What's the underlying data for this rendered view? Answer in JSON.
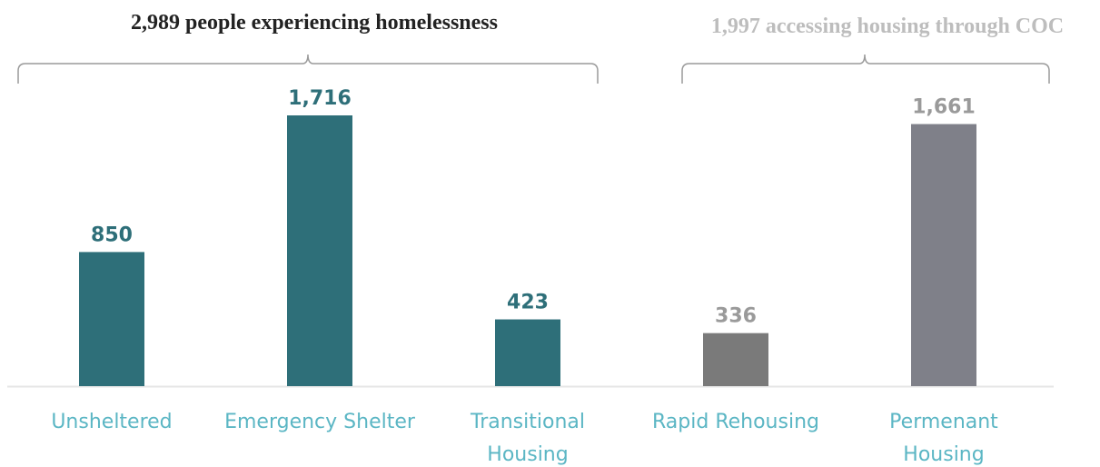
{
  "chart_data": {
    "type": "bar",
    "categories": [
      "Unsheltered",
      "Emergency Shelter",
      "Transitional Housing",
      "Rapid Rehousing",
      "Permenant Housing"
    ],
    "category_lines": [
      [
        "Unsheltered"
      ],
      [
        "Emergency Shelter"
      ],
      [
        "Transitional",
        "Housing"
      ],
      [
        "Rapid Rehousing"
      ],
      [
        "Permenant",
        "Housing"
      ]
    ],
    "values": [
      850,
      1716,
      423,
      336,
      1661
    ],
    "data_labels": [
      "850",
      "1,716",
      "423",
      "336",
      "1,661"
    ],
    "ylim": [
      0,
      1716
    ],
    "grid": false,
    "legend": "none",
    "groups": [
      {
        "label": "2,989 people experiencing homelessness",
        "categories": [
          0,
          1,
          2
        ],
        "color": "#222222"
      },
      {
        "label": "1,997 accessing housing through COC",
        "categories": [
          3,
          4
        ],
        "color": "#bdbdbd"
      }
    ],
    "bar_colors": [
      "#2e6f79",
      "#2e6f79",
      "#2e6f79",
      "#7a7a7a",
      "#7f8089"
    ],
    "value_label_colors": [
      "#2e6f79",
      "#2e6f79",
      "#2e6f79",
      "#9a9a9a",
      "#9a9a9a"
    ],
    "category_label_color": "#5bb6c4",
    "bracket_color": "#9a9a9a",
    "baseline_color": "#e6e6e6"
  }
}
